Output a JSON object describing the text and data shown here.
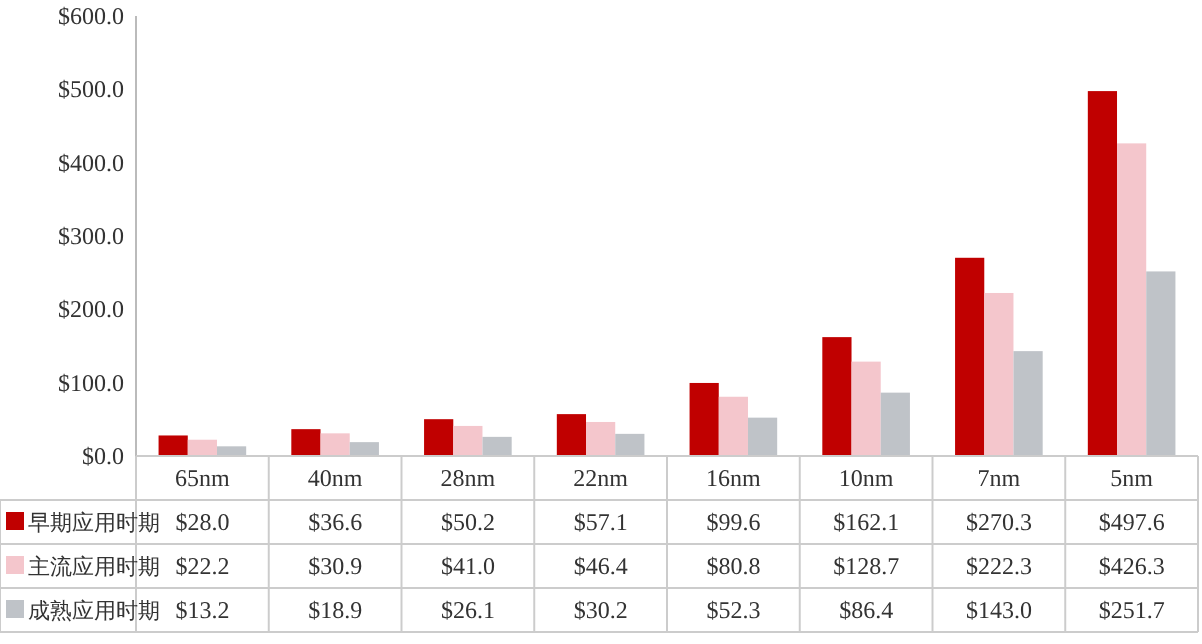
{
  "chart_data": {
    "type": "bar",
    "categories": [
      "65nm",
      "40nm",
      "28nm",
      "22nm",
      "16nm",
      "10nm",
      "7nm",
      "5nm"
    ],
    "series": [
      {
        "name": "早期应用时期",
        "color": "#c00000",
        "values": [
          28.0,
          36.6,
          50.2,
          57.1,
          99.6,
          162.1,
          270.3,
          497.6
        ],
        "value_labels": [
          "$28.0",
          "$36.6",
          "$50.2",
          "$57.1",
          "$99.6",
          "$162.1",
          "$270.3",
          "$497.6"
        ]
      },
      {
        "name": "主流应用时期",
        "color": "#f4c6cc",
        "values": [
          22.2,
          30.9,
          41.0,
          46.4,
          80.8,
          128.7,
          222.3,
          426.3
        ],
        "value_labels": [
          "$22.2",
          "$30.9",
          "$41.0",
          "$46.4",
          "$80.8",
          "$128.7",
          "$222.3",
          "$426.3"
        ]
      },
      {
        "name": "成熟应用时期",
        "color": "#bfc3c8",
        "values": [
          13.2,
          18.9,
          26.1,
          30.2,
          52.3,
          86.4,
          143.0,
          251.7
        ],
        "value_labels": [
          "$13.2",
          "$18.9",
          "$26.1",
          "$30.2",
          "$52.3",
          "$86.4",
          "$143.0",
          "$251.7"
        ]
      }
    ],
    "ylim": [
      0,
      600
    ],
    "yticks": [
      {
        "value": 0,
        "label": "$0.0"
      },
      {
        "value": 100,
        "label": "$100.0"
      },
      {
        "value": 200,
        "label": "$200.0"
      },
      {
        "value": 300,
        "label": "$300.0"
      },
      {
        "value": 400,
        "label": "$400.0"
      },
      {
        "value": 500,
        "label": "$500.0"
      },
      {
        "value": 600,
        "label": "$600.0"
      }
    ],
    "legend": "bottom left",
    "grid": false
  }
}
